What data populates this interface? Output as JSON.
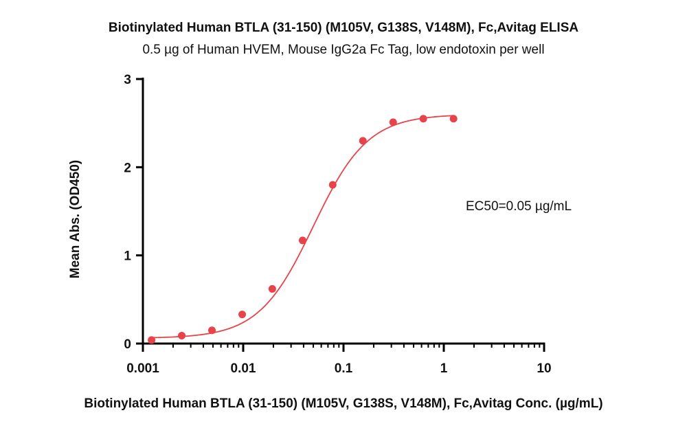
{
  "chart_data": {
    "type": "scatter",
    "title": "Biotinylated Human BTLA (31-150) (M105V, G138S, V148M), Fc,Avitag ELISA",
    "subtitle": "0.5 µg of Human HVEM, Mouse IgG2a Fc Tag, low endotoxin per well",
    "xlabel": "Biotinylated Human BTLA (31-150) (M105V, G138S, V148M), Fc,Avitag Conc. (µg/mL)",
    "ylabel": "Mean Abs. (OD450)",
    "x_scale": "log",
    "xlim": [
      0.001,
      10
    ],
    "ylim": [
      0,
      3
    ],
    "x_ticks": [
      0.001,
      0.01,
      0.1,
      1,
      10
    ],
    "x_tick_labels": [
      "0.001",
      "0.01",
      "0.1",
      "1",
      "10"
    ],
    "y_ticks": [
      0,
      1,
      2,
      3
    ],
    "y_tick_labels": [
      "0",
      "1",
      "2",
      "3"
    ],
    "annotation": "EC50=0.05 µg/mL",
    "grid": false,
    "color": "#e8434a",
    "series": [
      {
        "x": [
          0.00122,
          0.00244,
          0.00488,
          0.00977,
          0.0195,
          0.0391,
          0.0781,
          0.156,
          0.3125,
          0.625,
          1.25
        ],
        "y": [
          0.04,
          0.09,
          0.15,
          0.33,
          0.62,
          1.17,
          1.8,
          2.3,
          2.51,
          2.55,
          2.55
        ]
      }
    ],
    "fit": {
      "bottom": 0.06,
      "top": 2.6,
      "ec50": 0.05,
      "hill": 1.6
    }
  }
}
